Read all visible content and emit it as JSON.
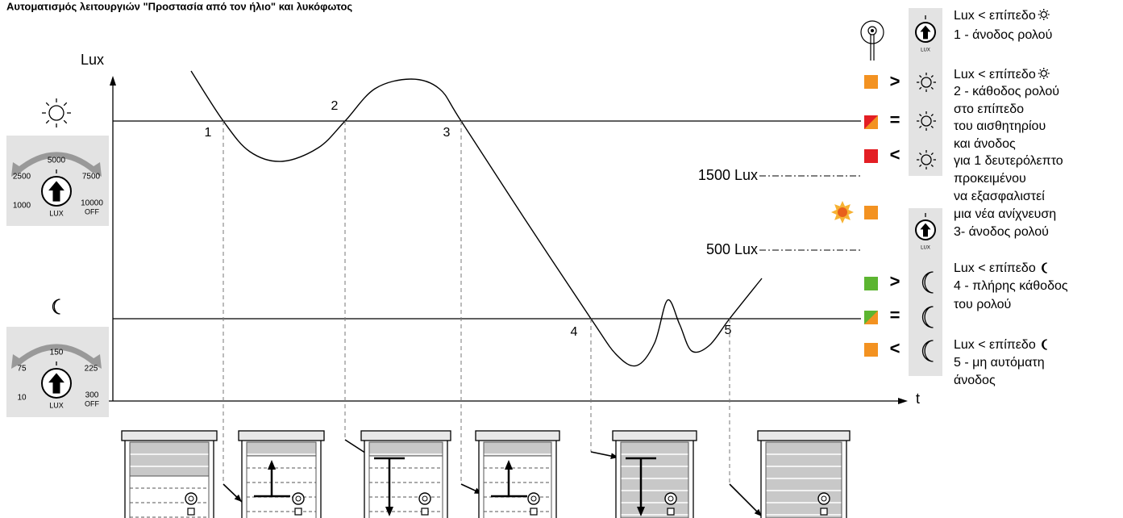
{
  "title": "Αυτοματισμός λειτουργιών \"Προστασία από τον ήλιο\" και λυκόφωτος",
  "axes": {
    "y_label": "Lux",
    "x_label": "t"
  },
  "points": [
    "1",
    "2",
    "3",
    "4",
    "5"
  ],
  "thresholds": [
    "1500 Lux",
    "500 Lux"
  ],
  "sun_dial": {
    "top": "5000",
    "left": "2500",
    "right": "7500",
    "bottom_left": "1000",
    "bottom_right": "10000",
    "off": "OFF",
    "unit": "LUX"
  },
  "moon_dial": {
    "top": "150",
    "left": "75",
    "right": "225",
    "bottom_left": "10",
    "bottom_right": "300",
    "off": "OFF",
    "unit": "LUX"
  },
  "legend": {
    "symbols": [
      ">",
      "=",
      "<",
      ">",
      "=",
      "<"
    ],
    "icon_unit": "LUX"
  },
  "description": [
    "Lux < επίπεδο",
    "1 - άνοδος ρολού",
    "Lux < επίπεδο",
    "2 - κάθοδος ρολού",
    "στο επίπεδο",
    "του αισθητηρίου",
    "και άνοδος",
    "για 1 δευτερόλεπτο",
    "προκειμένου",
    "να εξασφαλιστεί",
    "μια νέα ανίχνευση",
    "3- άνοδος ρολού",
    "Lux < επίπεδο",
    "4 - πλήρης κάθοδος",
    "του ρολού",
    "Lux < επίπεδο",
    "5 - μη αυτόματη",
    "άνοδος"
  ]
}
